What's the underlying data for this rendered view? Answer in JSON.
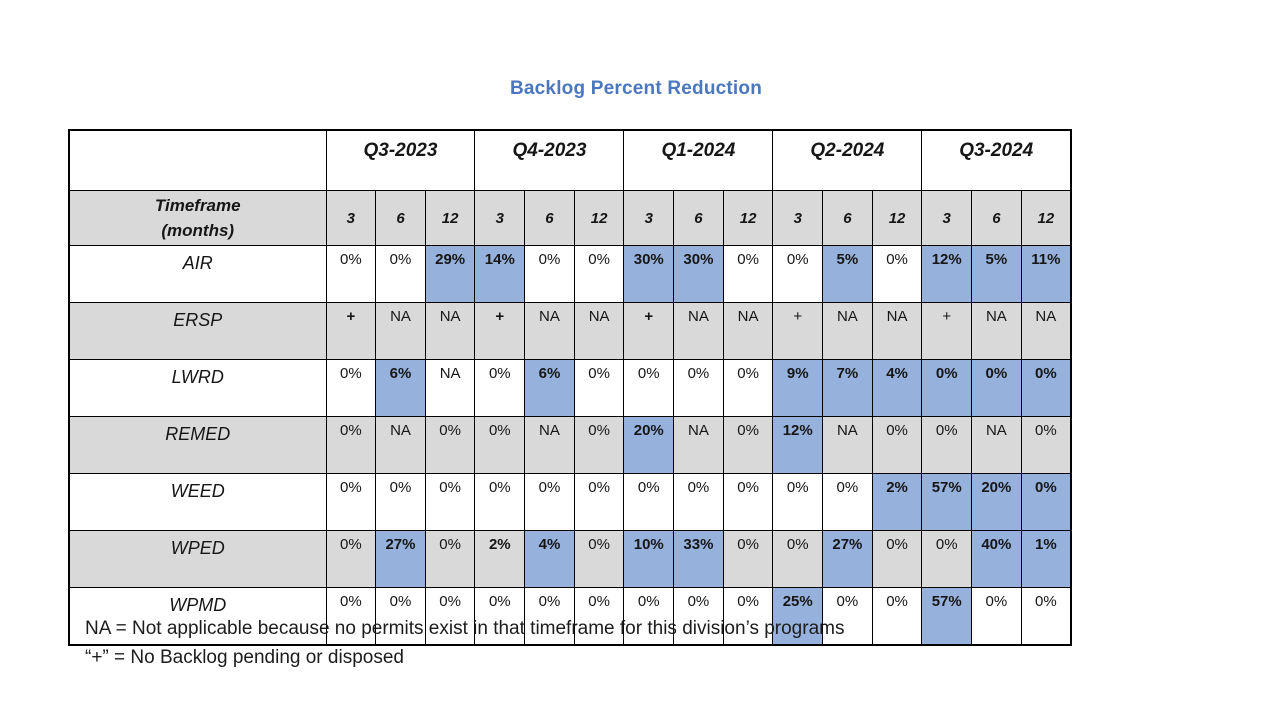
{
  "title": "Backlog Percent Reduction",
  "colors": {
    "highlight": "#96B2DC",
    "band_gray": "#D9D9D9",
    "title_blue": "#4A77BD",
    "navy": "#1F3864"
  },
  "table": {
    "corner": "",
    "timeframe_header": {
      "line1": "Timeframe",
      "line2": "(months)"
    },
    "quarters": [
      "Q3-2023",
      "Q4-2023",
      "Q1-2024",
      "Q2-2024",
      "Q3-2024"
    ],
    "month_headers": [
      {
        "label": "3"
      },
      {
        "label": "6"
      },
      {
        "label": "12",
        "navy": true
      },
      {
        "label": "3"
      },
      {
        "label": "6"
      },
      {
        "label": "12",
        "navy": true
      },
      {
        "label": "3"
      },
      {
        "label": "6"
      },
      {
        "label": "12",
        "navy": true
      },
      {
        "label": "3"
      },
      {
        "label": "6"
      },
      {
        "label": "12",
        "navy": true
      },
      {
        "label": "3"
      },
      {
        "label": "6"
      },
      {
        "label": "12"
      }
    ],
    "rows": [
      {
        "division": "AIR",
        "band": "white",
        "cells": [
          {
            "v": "0%"
          },
          {
            "v": "0%"
          },
          {
            "v": "29%",
            "h": true,
            "b": true
          },
          {
            "v": "14%",
            "h": true,
            "b": true
          },
          {
            "v": "0%"
          },
          {
            "v": "0%"
          },
          {
            "v": "30%",
            "h": true,
            "b": true
          },
          {
            "v": "30%",
            "h": true,
            "b": true
          },
          {
            "v": "0%"
          },
          {
            "v": "0%"
          },
          {
            "v": "5%",
            "h": true,
            "b": true
          },
          {
            "v": "0%"
          },
          {
            "v": "12%",
            "h": true,
            "b": true
          },
          {
            "v": "5%",
            "h": true,
            "b": true
          },
          {
            "v": "11%",
            "h": true,
            "b": true
          }
        ]
      },
      {
        "division": "ERSP",
        "band": "gray",
        "cells": [
          {
            "v": "+",
            "b": true
          },
          {
            "v": "NA"
          },
          {
            "v": "NA"
          },
          {
            "v": "+",
            "b": true
          },
          {
            "v": "NA"
          },
          {
            "v": "NA"
          },
          {
            "v": "+",
            "b": true
          },
          {
            "v": "NA"
          },
          {
            "v": "NA"
          },
          {
            "v": "+"
          },
          {
            "v": "NA"
          },
          {
            "v": "NA"
          },
          {
            "v": "+"
          },
          {
            "v": "NA"
          },
          {
            "v": "NA"
          }
        ]
      },
      {
        "division": "LWRD",
        "band": "white",
        "cells": [
          {
            "v": "0%"
          },
          {
            "v": "6%",
            "h": true,
            "b": true
          },
          {
            "v": "NA"
          },
          {
            "v": "0%"
          },
          {
            "v": "6%",
            "h": true,
            "b": true
          },
          {
            "v": "0%"
          },
          {
            "v": "0%"
          },
          {
            "v": "0%"
          },
          {
            "v": "0%"
          },
          {
            "v": "9%",
            "h": true,
            "b": true
          },
          {
            "v": "7%",
            "h": true,
            "b": true
          },
          {
            "v": "4%",
            "h": true,
            "b": true
          },
          {
            "v": "0%",
            "h": true,
            "b": true
          },
          {
            "v": "0%",
            "h": true,
            "b": true
          },
          {
            "v": "0%",
            "h": true,
            "b": true
          }
        ]
      },
      {
        "division": "REMED",
        "band": "gray",
        "cells": [
          {
            "v": "0%"
          },
          {
            "v": "NA"
          },
          {
            "v": "0%"
          },
          {
            "v": "0%"
          },
          {
            "v": "NA"
          },
          {
            "v": "0%"
          },
          {
            "v": "20%",
            "h": true,
            "b": true
          },
          {
            "v": "NA"
          },
          {
            "v": "0%"
          },
          {
            "v": "12%",
            "h": true,
            "b": true
          },
          {
            "v": "NA"
          },
          {
            "v": "0%"
          },
          {
            "v": "0%"
          },
          {
            "v": "NA"
          },
          {
            "v": "0%"
          }
        ]
      },
      {
        "division": "WEED",
        "band": "white",
        "cells": [
          {
            "v": "0%"
          },
          {
            "v": "0%"
          },
          {
            "v": "0%"
          },
          {
            "v": "0%"
          },
          {
            "v": "0%"
          },
          {
            "v": "0%"
          },
          {
            "v": "0%"
          },
          {
            "v": "0%"
          },
          {
            "v": "0%"
          },
          {
            "v": "0%"
          },
          {
            "v": "0%"
          },
          {
            "v": "2%",
            "h": true,
            "b": true
          },
          {
            "v": "57%",
            "h": true,
            "b": true
          },
          {
            "v": "20%",
            "h": true,
            "b": true
          },
          {
            "v": "0%",
            "h": true,
            "b": true
          }
        ]
      },
      {
        "division": "WPED",
        "band": "gray",
        "cells": [
          {
            "v": "0%"
          },
          {
            "v": "27%",
            "h": true,
            "b": true
          },
          {
            "v": "0%"
          },
          {
            "v": "2%",
            "b": true
          },
          {
            "v": "4%",
            "h": true,
            "b": true
          },
          {
            "v": "0%"
          },
          {
            "v": "10%",
            "h": true,
            "b": true
          },
          {
            "v": "33%",
            "h": true,
            "b": true
          },
          {
            "v": "0%"
          },
          {
            "v": "0%"
          },
          {
            "v": "27%",
            "h": true,
            "b": true
          },
          {
            "v": "0%"
          },
          {
            "v": "0%"
          },
          {
            "v": "40%",
            "h": true,
            "b": true
          },
          {
            "v": "1%",
            "h": true,
            "b": true
          }
        ]
      },
      {
        "division": "WPMD",
        "band": "white",
        "cells": [
          {
            "v": "0%"
          },
          {
            "v": "0%"
          },
          {
            "v": "0%"
          },
          {
            "v": "0%"
          },
          {
            "v": "0%"
          },
          {
            "v": "0%"
          },
          {
            "v": "0%"
          },
          {
            "v": "0%"
          },
          {
            "v": "0%"
          },
          {
            "v": "25%",
            "h": true,
            "b": true
          },
          {
            "v": "0%"
          },
          {
            "v": "0%"
          },
          {
            "v": "57%",
            "h": true,
            "b": true
          },
          {
            "v": "0%"
          },
          {
            "v": "0%"
          }
        ]
      }
    ]
  },
  "footnotes": [
    "NA = Not applicable because no permits exist in that timeframe for this division’s programs",
    "“+” = No Backlog pending or disposed"
  ]
}
